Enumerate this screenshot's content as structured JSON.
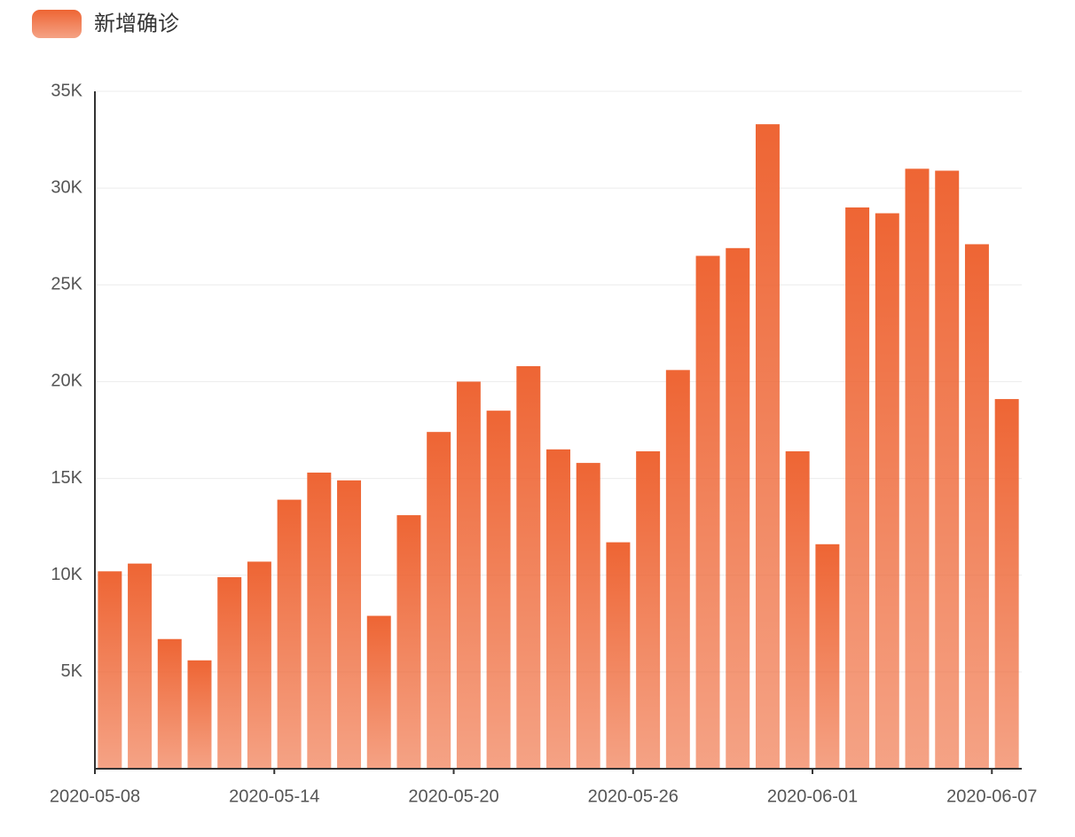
{
  "chart_data": {
    "type": "bar",
    "legend": "新增确诊",
    "color": "#ee6534",
    "categories": [
      "2020-05-08",
      null,
      null,
      null,
      null,
      null,
      "2020-05-14",
      null,
      null,
      null,
      null,
      null,
      "2020-05-20",
      null,
      null,
      null,
      null,
      null,
      "2020-05-26",
      null,
      null,
      null,
      null,
      null,
      "2020-06-01",
      null,
      null,
      null,
      null,
      null,
      "2020-06-07"
    ],
    "values": [
      10200,
      10600,
      6700,
      5600,
      9900,
      10700,
      13900,
      15300,
      14900,
      7900,
      13100,
      17400,
      20000,
      18500,
      20800,
      16500,
      15800,
      11700,
      16400,
      20600,
      26500,
      26900,
      33300,
      16400,
      11600,
      29000,
      28700,
      31000,
      30900,
      27100,
      19100
    ],
    "ylim": [
      0,
      35000
    ],
    "yticks": [
      {
        "value": 5000,
        "label": "5K"
      },
      {
        "value": 10000,
        "label": "10K"
      },
      {
        "value": 15000,
        "label": "15K"
      },
      {
        "value": 20000,
        "label": "20K"
      },
      {
        "value": 25000,
        "label": "25K"
      },
      {
        "value": 30000,
        "label": "30K"
      },
      {
        "value": 35000,
        "label": "35K"
      }
    ],
    "grid": true
  }
}
